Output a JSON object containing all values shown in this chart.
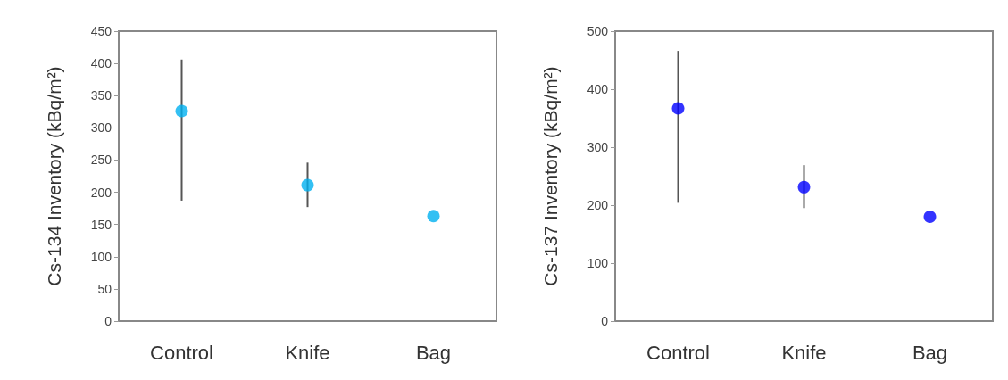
{
  "chart_data": [
    {
      "type": "scatter",
      "ylabel": "Cs-134 Inventory (kBq/m²)",
      "categories": [
        "Control",
        "Knife",
        "Bag"
      ],
      "values": [
        326,
        211,
        163
      ],
      "errors": [
        [
          187,
          406
        ],
        [
          177,
          246
        ],
        null
      ],
      "color": "#00b0f0",
      "marker": "circle",
      "ylim": [
        0,
        450
      ],
      "yticks": [
        0,
        50,
        100,
        150,
        200,
        250,
        300,
        350,
        400,
        450
      ],
      "grid": false
    },
    {
      "type": "scatter",
      "ylabel": "Cs-137 Inventory (kBq/m²)",
      "categories": [
        "Control",
        "Knife",
        "Bag"
      ],
      "values": [
        367,
        231,
        180
      ],
      "errors": [
        [
          204,
          466
        ],
        [
          195,
          269
        ],
        null
      ],
      "color": "#0000ff",
      "marker": "circle",
      "ylim": [
        0,
        500
      ],
      "yticks": [
        0,
        100,
        200,
        300,
        400,
        500
      ],
      "grid": false
    }
  ]
}
